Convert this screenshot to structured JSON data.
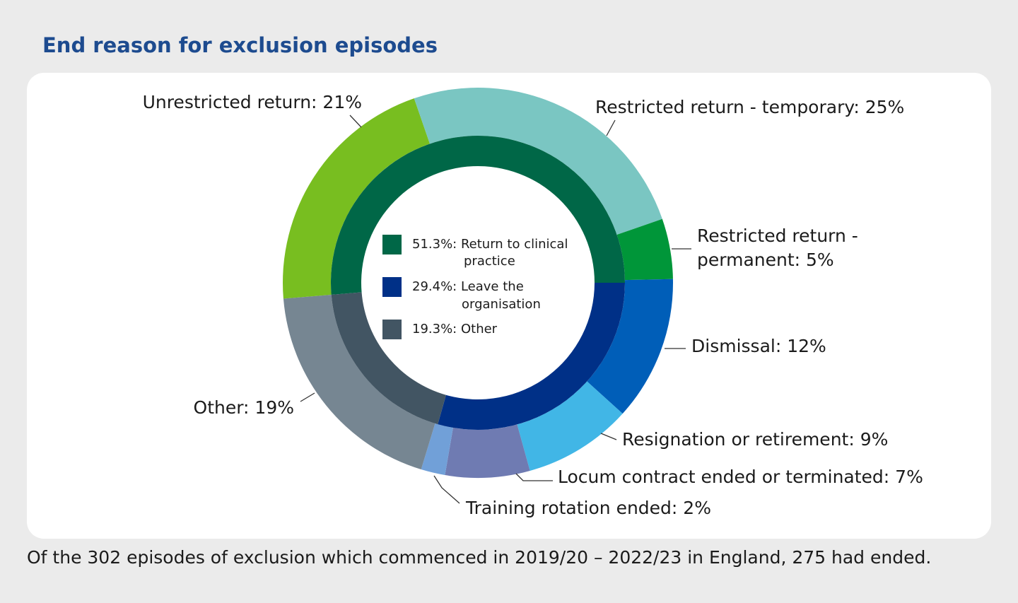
{
  "chart_data": {
    "type": "nested_donut",
    "title": "End reason for exclusion episodes",
    "footnote": "Of the 302 episodes of exclusion which commenced in 2019/20 – 2022/23 in England, 275 had ended.",
    "inner": {
      "labels": [
        [
          "51.3%: Return to clinical",
          "practice"
        ],
        [
          "29.4%: Leave the",
          "organisation"
        ],
        [
          "19.3%: Other"
        ]
      ],
      "values": [
        51.3,
        29.4,
        19.3
      ],
      "colors": [
        "#006747",
        "#003087",
        "#425563"
      ]
    },
    "outer": {
      "labels": [
        [
          "Unrestricted return: 21%"
        ],
        [
          "Restricted return - temporary: 25%"
        ],
        [
          "Restricted return -",
          "permanent: 5%"
        ],
        [
          "Dismissal: 12%"
        ],
        [
          "Resignation or retirement: 9%"
        ],
        [
          "Locum contract ended or terminated: 7%"
        ],
        [
          "Training rotation ended: 2%"
        ],
        [
          "Other: 19%"
        ]
      ],
      "values": [
        21,
        25,
        5,
        12,
        9,
        7,
        2,
        19
      ],
      "colors": [
        "#78be20",
        "#7ac6c2",
        "#009639",
        "#005eb8",
        "#41b6e6",
        "#6f7bb2",
        "#71a0d8",
        "#768692"
      ]
    }
  }
}
